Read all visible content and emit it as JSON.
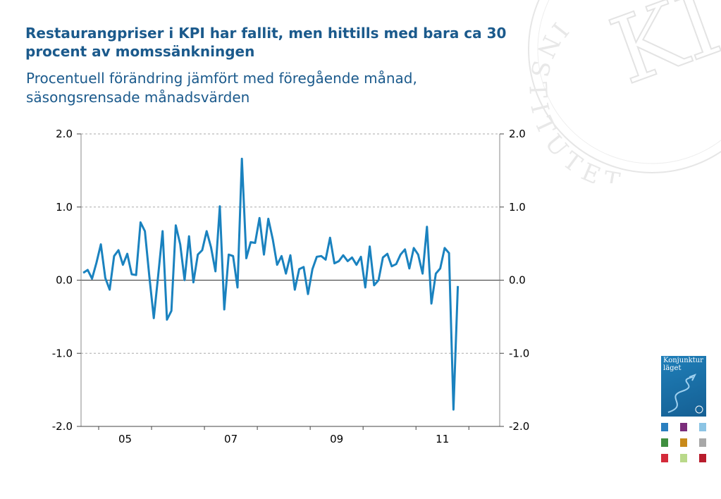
{
  "header": {
    "title": "Restaurangpriser i KPI har fallit, men hittills med bara ca 30 procent av momssänkningen",
    "subtitle": "Procentuell förändring jämfört med föregående månad, säsongsrensade månadsvärden"
  },
  "seal": {
    "text": "INSTITUTET",
    "monogram": "KI"
  },
  "logo": {
    "text_line1": "Konjunktur",
    "text_line2": "läget"
  },
  "swatch_colors": [
    "#2a7fbf",
    "#7b2d7b",
    "#8cc4e4",
    "#3f8f3f",
    "#c98a1a",
    "#a8a8a8",
    "#d42a3a",
    "#b9d98a",
    "#b81c2c"
  ],
  "chart_data": {
    "type": "line",
    "ylim": [
      -2.0,
      2.0
    ],
    "yticks": [
      "2.0",
      "1.0",
      "0.0",
      "-1.0",
      "-2.0"
    ],
    "ytick_values": [
      2.0,
      1.0,
      0.0,
      -1.0,
      -2.0
    ],
    "xlim": [
      2004.667,
      2012.583
    ],
    "xticks": [
      "05",
      "07",
      "09",
      "11"
    ],
    "xtick_values": [
      2005.5,
      2007.5,
      2009.5,
      2011.5
    ],
    "grid": true,
    "line_color": "#1a82bf",
    "series": [
      {
        "start_year": 2004,
        "start_month": 9,
        "values": [
          0.1,
          0.14,
          0.02,
          0.24,
          0.49,
          0.03,
          -0.13,
          0.33,
          0.41,
          0.21,
          0.36,
          0.08,
          0.07,
          0.79,
          0.67,
          0.05,
          -0.52,
          0.06,
          0.67,
          -0.54,
          -0.42,
          0.75,
          0.49,
          0.0,
          0.6,
          -0.03,
          0.35,
          0.41,
          0.67,
          0.45,
          0.12,
          1.01,
          -0.4,
          0.35,
          0.33,
          -0.1,
          1.66,
          0.3,
          0.52,
          0.51,
          0.85,
          0.35,
          0.84,
          0.56,
          0.21,
          0.33,
          0.09,
          0.34,
          -0.13,
          0.15,
          0.18,
          -0.19,
          0.15,
          0.32,
          0.33,
          0.28,
          0.58,
          0.23,
          0.26,
          0.34,
          0.26,
          0.31,
          0.21,
          0.32,
          -0.1,
          0.46,
          -0.07,
          0.0,
          0.31,
          0.36,
          0.19,
          0.22,
          0.35,
          0.42,
          0.16,
          0.44,
          0.35,
          0.09,
          0.73,
          -0.32,
          0.09,
          0.16,
          0.44,
          0.37,
          -1.77,
          -0.08
        ]
      }
    ]
  }
}
